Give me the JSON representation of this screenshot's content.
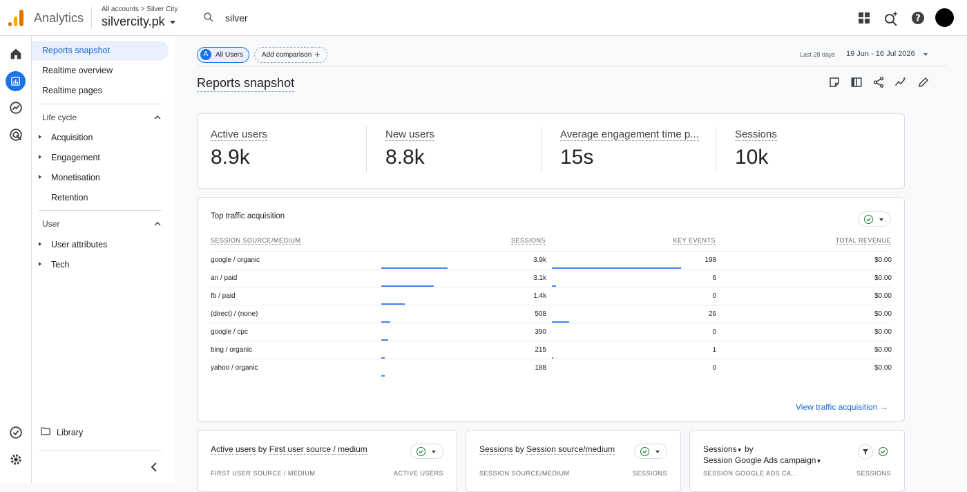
{
  "header": {
    "app_name": "Analytics",
    "account_path": "All accounts > Silver City",
    "property": "silvercity.pk",
    "search_value": "silver"
  },
  "icons": {
    "apps": "apps-grid-icon",
    "insights": "insights-sparkle-icon",
    "help": "help-icon",
    "avatar": "avatar"
  },
  "nav": {
    "items": [
      "Reports snapshot",
      "Realtime overview",
      "Realtime pages"
    ],
    "lifecycle": {
      "label": "Life cycle",
      "items": [
        "Acquisition",
        "Engagement",
        "Monetisation",
        "Retention"
      ]
    },
    "user": {
      "label": "User",
      "items": [
        "User attributes",
        "Tech"
      ]
    },
    "library": "Library"
  },
  "toolbar": {
    "segment_badge": "A",
    "segment": "All Users",
    "add_comparison": "Add comparison",
    "date_label": "Last 28 days",
    "date_range": "19 Jun - 16 Jul 2026"
  },
  "page": {
    "title": "Reports snapshot"
  },
  "kpis": [
    {
      "label": "Active users",
      "value": "8.9k"
    },
    {
      "label": "New users",
      "value": "8.8k"
    },
    {
      "label": "Average engagement time p...",
      "value": "15s"
    },
    {
      "label": "Sessions",
      "value": "10k"
    }
  ],
  "traffic": {
    "title": "Top traffic acquisition",
    "columns": [
      "SESSION SOURCE/MEDIUM",
      "SESSIONS",
      "KEY EVENTS",
      "TOTAL REVENUE"
    ],
    "rows": [
      {
        "source": "google / organic",
        "sessions": "3.9k",
        "sessions_num": 3900,
        "key_events": "198",
        "key_events_num": 198,
        "revenue": "$0.00"
      },
      {
        "source": "an / paid",
        "sessions": "3.1k",
        "sessions_num": 3100,
        "key_events": "6",
        "key_events_num": 6,
        "revenue": "$0.00"
      },
      {
        "source": "fb / paid",
        "sessions": "1.4k",
        "sessions_num": 1400,
        "key_events": "0",
        "key_events_num": 0,
        "revenue": "$0.00"
      },
      {
        "source": "(direct) / (none)",
        "sessions": "508",
        "sessions_num": 508,
        "key_events": "26",
        "key_events_num": 26,
        "revenue": "$0.00"
      },
      {
        "source": "google / cpc",
        "sessions": "390",
        "sessions_num": 390,
        "key_events": "0",
        "key_events_num": 0,
        "revenue": "$0.00"
      },
      {
        "source": "bing / organic",
        "sessions": "215",
        "sessions_num": 215,
        "key_events": "1",
        "key_events_num": 1,
        "revenue": "$0.00"
      },
      {
        "source": "yahoo / organic",
        "sessions": "188",
        "sessions_num": 188,
        "key_events": "0",
        "key_events_num": 0,
        "revenue": "$0.00"
      }
    ],
    "view_link": "View traffic acquisition"
  },
  "cards": [
    {
      "metric": "Active users",
      "by": "by",
      "dimension": "First user source / medium",
      "col1": "FIRST USER SOURCE / MEDIUM",
      "col2": "ACTIVE USERS"
    },
    {
      "metric": "Sessions",
      "by": "by",
      "dimension": "Session source/medium",
      "col1": "SESSION SOURCE/MEDIUM",
      "col2": "SESSIONS"
    },
    {
      "metric": "Sessions",
      "by": "by",
      "dimension": "Session Google Ads campaign",
      "col1": "SESSION GOOGLE ADS CA...",
      "col2": "SESSIONS"
    }
  ]
}
